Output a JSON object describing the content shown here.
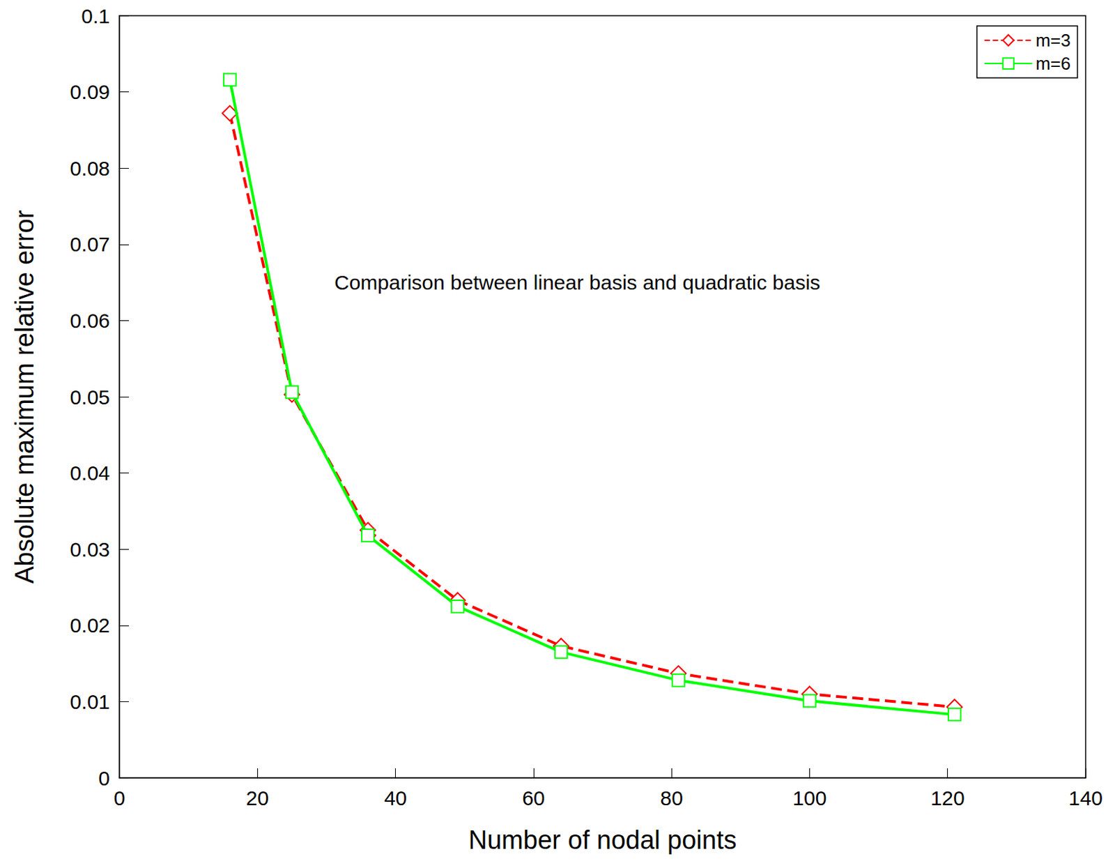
{
  "chart_data": {
    "type": "line",
    "x_label": "Number of nodal points",
    "y_label": "Absolute maximum relative error",
    "annotation": "Comparison between linear basis and quadratic basis",
    "x": [
      16,
      25,
      36,
      49,
      64,
      81,
      100,
      121
    ],
    "series": [
      {
        "name": "m=3",
        "color": "#ff0000",
        "marker": "diamond",
        "line_style": "dashed",
        "values": [
          0.0872,
          0.0503,
          0.0325,
          0.0233,
          0.0173,
          0.0137,
          0.011,
          0.0093
        ]
      },
      {
        "name": "m=6",
        "color": "#00ff00",
        "marker": "square",
        "line_style": "solid",
        "values": [
          0.0916,
          0.0506,
          0.0318,
          0.0225,
          0.0165,
          0.0128,
          0.0101,
          0.0083
        ]
      }
    ],
    "xlim": [
      0,
      140
    ],
    "xticks": [
      0,
      20,
      40,
      60,
      80,
      100,
      120,
      140
    ],
    "ylim": [
      0,
      0.1
    ],
    "yticks": [
      0,
      0.01,
      0.02,
      0.03,
      0.04,
      0.05,
      0.06,
      0.07,
      0.08,
      0.09,
      0.1
    ],
    "grid": false,
    "legend": "upper right"
  }
}
